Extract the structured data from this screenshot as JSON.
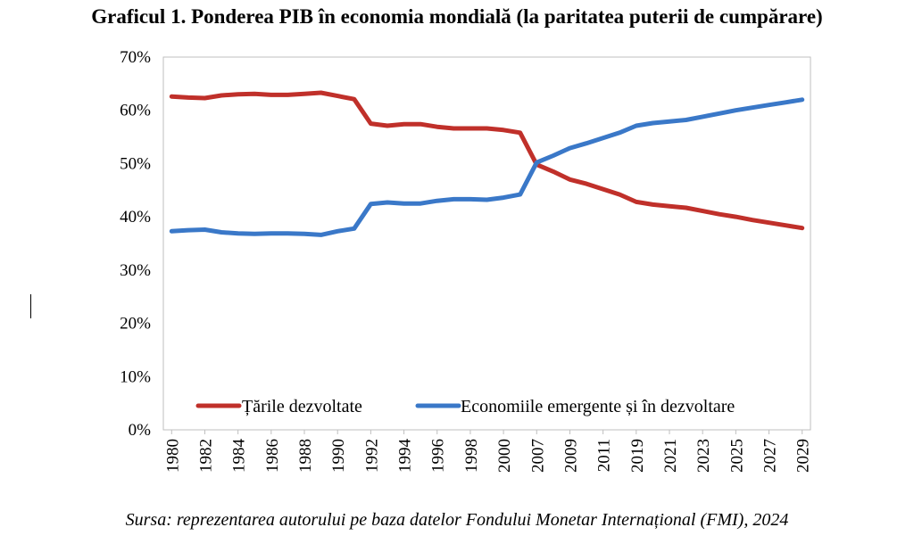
{
  "title": "Graficul 1. Ponderea PIB în economia mondială (la paritatea puterii de cumpărare)",
  "caption": "Sursa: reprezentarea autorului pe baza datelor Fondului Monetar Internațional (FMI), 2024",
  "chart_data": {
    "type": "line",
    "title": "Graficul 1. Ponderea PIB în economia mondială (la paritatea puterii de cumpărare)",
    "xlabel": "",
    "ylabel": "",
    "ylim": [
      0,
      70
    ],
    "yticks": [
      "0%",
      "10%",
      "20%",
      "30%",
      "40%",
      "50%",
      "60%",
      "70%"
    ],
    "grid": false,
    "legend_position": "bottom-inside",
    "categories": [
      "1980",
      "1981",
      "1982",
      "1983",
      "1984",
      "1985",
      "1986",
      "1987",
      "1988",
      "1989",
      "1990",
      "1991",
      "1992",
      "1993",
      "1994",
      "1995",
      "1996",
      "1997",
      "1998",
      "1999",
      "2000",
      "2001",
      "2007",
      "2008",
      "2009",
      "2010",
      "2011",
      "2012",
      "2019",
      "2020",
      "2021",
      "2022",
      "2023",
      "2024",
      "2025",
      "2026",
      "2027",
      "2028",
      "2029"
    ],
    "x_tick_labels": [
      "1980",
      "1982",
      "1984",
      "1986",
      "1988",
      "1990",
      "1992",
      "1994",
      "1996",
      "1998",
      "2000",
      "2007",
      "2009",
      "2011",
      "2019",
      "2021",
      "2023",
      "2025",
      "2027",
      "2029"
    ],
    "series": [
      {
        "name": "Țările dezvoltate",
        "color": "#c0302a",
        "values": [
          62.6,
          62.4,
          62.3,
          62.8,
          63.0,
          63.1,
          62.9,
          62.9,
          63.1,
          63.3,
          62.7,
          62.1,
          57.5,
          57.1,
          57.4,
          57.4,
          56.9,
          56.6,
          56.6,
          56.6,
          56.3,
          55.8,
          49.8,
          48.5,
          47.0,
          46.2,
          45.2,
          44.2,
          42.8,
          42.3,
          42.0,
          41.7,
          41.1,
          40.5,
          40.0,
          39.4,
          38.9,
          38.4,
          37.9
        ]
      },
      {
        "name": "Economiile emergente și în dezvoltare",
        "color": "#3a78c8",
        "values": [
          37.3,
          37.5,
          37.6,
          37.1,
          36.9,
          36.8,
          36.9,
          36.9,
          36.8,
          36.6,
          37.3,
          37.8,
          42.4,
          42.7,
          42.5,
          42.5,
          43.0,
          43.3,
          43.3,
          43.2,
          43.6,
          44.2,
          50.2,
          51.5,
          52.9,
          53.8,
          54.8,
          55.8,
          57.1,
          57.6,
          57.9,
          58.2,
          58.8,
          59.4,
          60.0,
          60.5,
          61.0,
          61.5,
          62.0
        ]
      }
    ]
  }
}
